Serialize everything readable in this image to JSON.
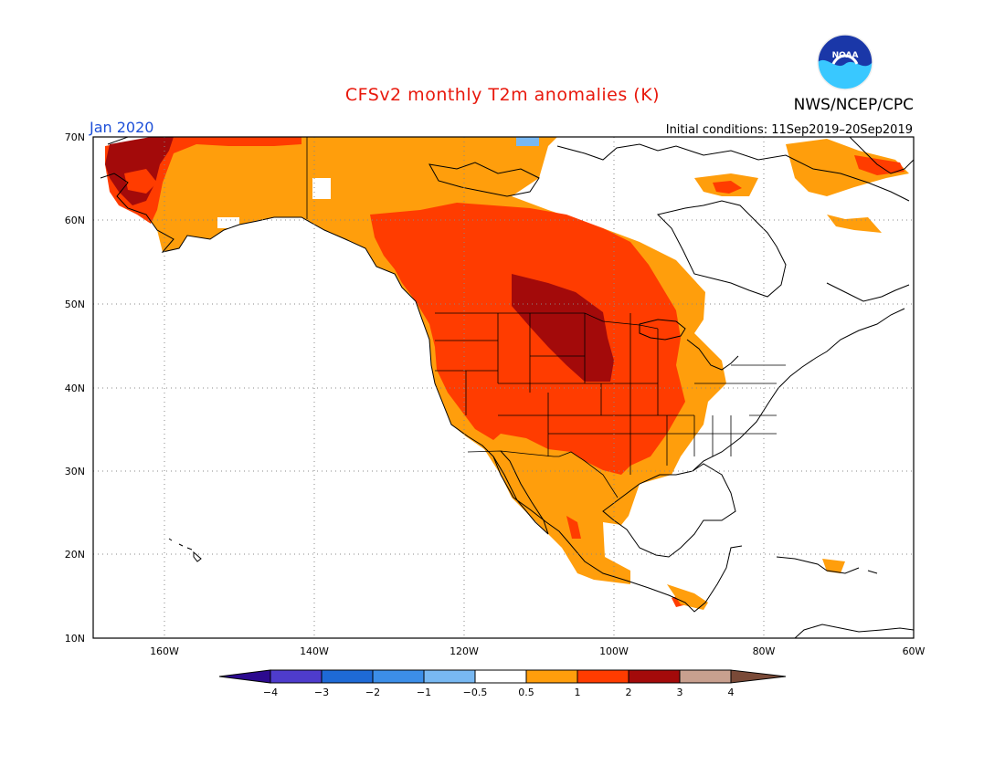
{
  "header": {
    "title": "CFSv2 monthly T2m anomalies (K)",
    "month": "Jan 2020",
    "initial_conditions": "Initial conditions: 11Sep2019–20Sep2019",
    "org": "NWS/NCEP/CPC",
    "logo_text": "NOAA"
  },
  "map": {
    "lat_labels": [
      "70N",
      "60N",
      "50N",
      "40N",
      "30N",
      "20N",
      "10N"
    ],
    "lon_labels": [
      "160W",
      "140W",
      "120W",
      "100W",
      "80W",
      "60W"
    ]
  },
  "colorbar": {
    "tick_labels": [
      "−4",
      "−3",
      "−2",
      "−1",
      "−0.5",
      "0.5",
      "1",
      "2",
      "3",
      "4"
    ],
    "colors": {
      "lt_-4": "#2c0a8f",
      "-4_-3": "#4e3ccc",
      "-3_-2": "#1e6ad6",
      "-2_-1": "#3c8ee8",
      "-1_-0.5": "#78b8f2",
      "-0.5_0.5": "#ffffff",
      "0.5_1": "#ff9e0c",
      "1_2": "#ff3c00",
      "2_3": "#a30a0a",
      "3_4": "#c8a08f",
      "gt_4": "#7a4a38"
    }
  }
}
